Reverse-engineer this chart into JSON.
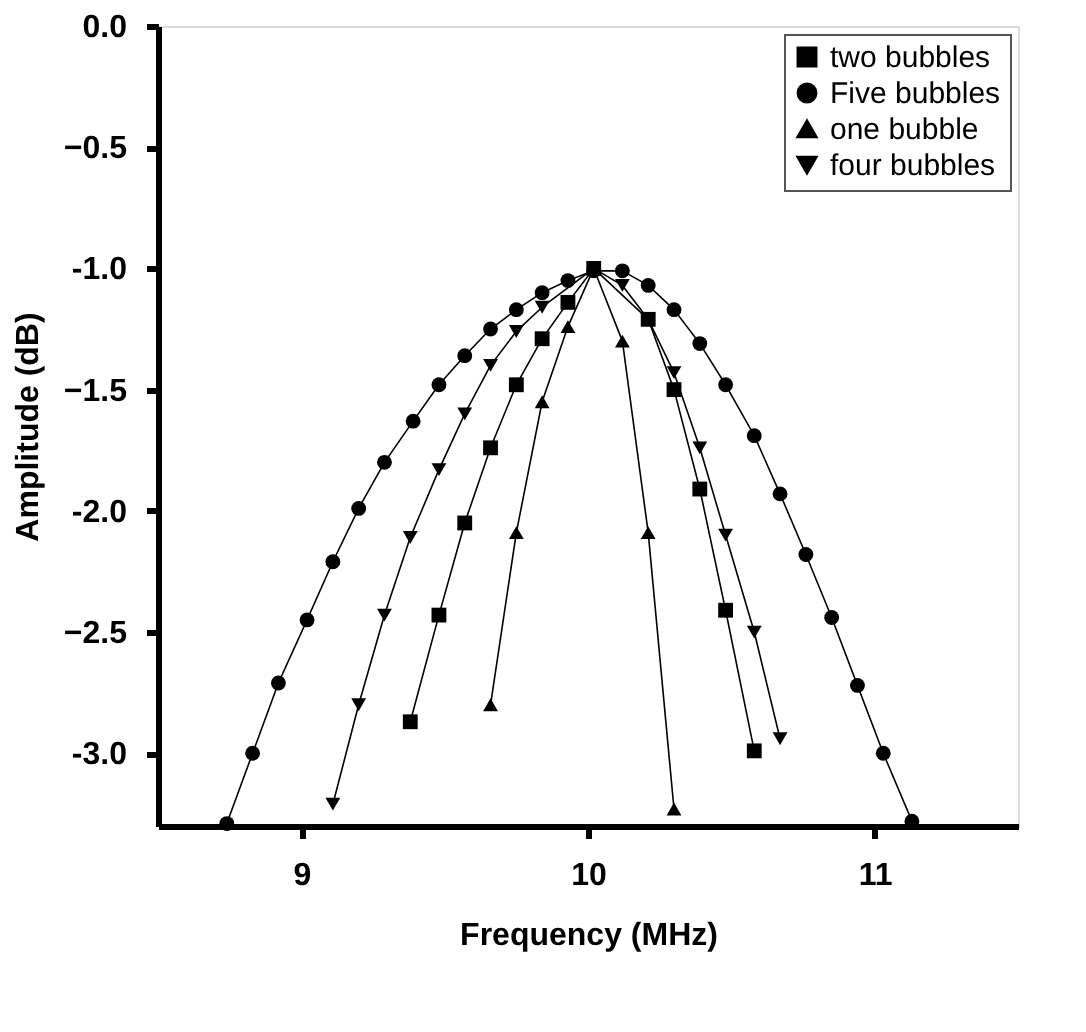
{
  "chart_data": {
    "type": "line",
    "xlabel": "Frequency (MHz)",
    "ylabel": "Amplitude (dB)",
    "xlim": [
      8.5,
      11.5
    ],
    "xticks": [
      9,
      10,
      11
    ],
    "ylim": [
      -3.3,
      0.0
    ],
    "yticks": [
      {
        "value": 0,
        "label": "0.0"
      },
      -0.5,
      {
        "value": -1,
        "label": "-1.0"
      },
      -1.5,
      {
        "value": -2,
        "label": "-2.0"
      },
      -2.5,
      {
        "value": -3,
        "label": "-3.0"
      }
    ],
    "grid": false,
    "legend": "top right",
    "line_style": "solid",
    "series": [
      {
        "name": "two bubbles",
        "color": "#000000",
        "marker": "square",
        "x": [
          9.38,
          9.48,
          9.57,
          9.66,
          9.75,
          9.84,
          9.93,
          10.02,
          10.21,
          10.3,
          10.39,
          10.48,
          10.58
        ],
        "values": [
          -2.87,
          -2.43,
          -2.05,
          -1.74,
          -1.48,
          -1.29,
          -1.14,
          -1.0,
          -1.21,
          -1.5,
          -1.91,
          -2.41,
          -2.99
        ]
      },
      {
        "name": "Five bubbles",
        "color": "#000000",
        "marker": "circle",
        "x": [
          8.74,
          8.83,
          8.92,
          9.02,
          9.11,
          9.2,
          9.29,
          9.39,
          9.48,
          9.57,
          9.66,
          9.75,
          9.84,
          9.93,
          10.02,
          10.12,
          10.21,
          10.3,
          10.39,
          10.48,
          10.58,
          10.67,
          10.76,
          10.85,
          10.94,
          11.03,
          11.13
        ],
        "values": [
          -3.29,
          -3.0,
          -2.71,
          -2.45,
          -2.21,
          -1.99,
          -1.8,
          -1.63,
          -1.48,
          -1.36,
          -1.25,
          -1.17,
          -1.1,
          -1.05,
          -1.01,
          -1.01,
          -1.07,
          -1.17,
          -1.31,
          -1.48,
          -1.69,
          -1.93,
          -2.18,
          -2.44,
          -2.72,
          -3.0,
          -3.28
        ]
      },
      {
        "name": "one bubble",
        "color": "#000000",
        "marker": "triangle",
        "x": [
          9.66,
          9.75,
          9.84,
          9.93,
          10.02,
          10.12,
          10.21,
          10.3
        ],
        "values": [
          -2.8,
          -2.09,
          -1.55,
          -1.24,
          -1.0,
          -1.3,
          -2.09,
          -3.23
        ]
      },
      {
        "name": "four bubbles",
        "color": "#000000",
        "marker": "triangle-down",
        "x": [
          9.11,
          9.2,
          9.29,
          9.38,
          9.48,
          9.57,
          9.66,
          9.75,
          9.84,
          10.02,
          10.12,
          10.21,
          10.3,
          10.39,
          10.48,
          10.58,
          10.67
        ],
        "values": [
          -3.21,
          -2.8,
          -2.43,
          -2.11,
          -1.83,
          -1.6,
          -1.4,
          -1.26,
          -1.16,
          -1.0,
          -1.07,
          -1.21,
          -1.43,
          -1.74,
          -2.1,
          -2.5,
          -2.94
        ]
      }
    ]
  }
}
